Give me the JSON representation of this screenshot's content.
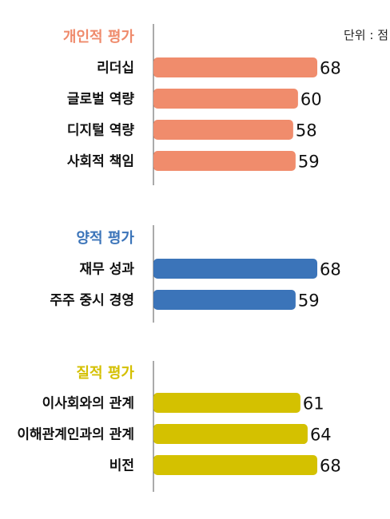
{
  "unit_label": "단위 : 점",
  "chart_data": [
    {
      "type": "bar",
      "title": "개인적 평가",
      "title_color": "#ef8a6b",
      "bar_color": "#f08c6c",
      "categories": [
        "리더십",
        "글로벌 역량",
        "디지털 역량",
        "사회적 책임"
      ],
      "values": [
        68,
        60,
        58,
        59
      ],
      "xlim": [
        0,
        68
      ]
    },
    {
      "type": "bar",
      "title": "양적 평가",
      "title_color": "#3b74b9",
      "bar_color": "#3b74b9",
      "categories": [
        "재무 성과",
        "주주 중시 경영"
      ],
      "values": [
        68,
        59
      ],
      "xlim": [
        0,
        68
      ]
    },
    {
      "type": "bar",
      "title": "질적 평가",
      "title_color": "#d4c000",
      "bar_color": "#d4c100",
      "categories": [
        "이사회와의 관계",
        "이해관계인과의 관계",
        "비전"
      ],
      "values": [
        61,
        64,
        68
      ],
      "xlim": [
        0,
        68
      ]
    }
  ]
}
